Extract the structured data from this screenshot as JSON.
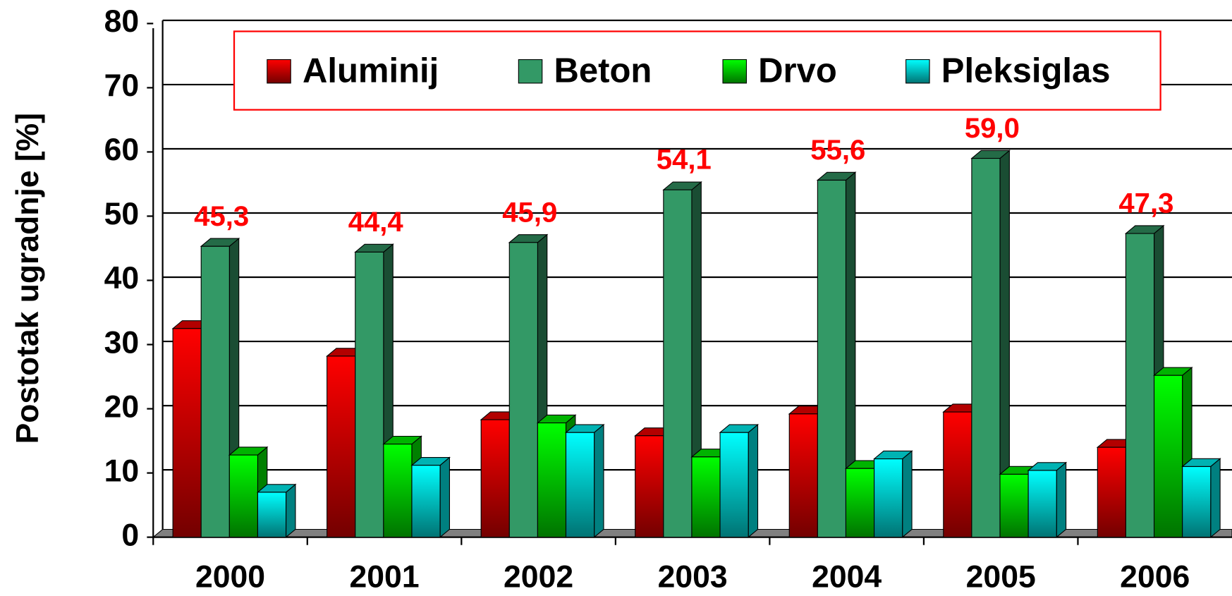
{
  "chart_data": {
    "type": "bar3d",
    "y_label": "Postotak ugradnje [%]",
    "categories": [
      "2000",
      "2001",
      "2002",
      "2003",
      "2004",
      "2005",
      "2006"
    ],
    "series": [
      {
        "name": "Aluminij",
        "color": "#ff0000",
        "values": [
          32.5,
          28.2,
          18.3,
          15.8,
          19.2,
          19.5,
          14.0
        ]
      },
      {
        "name": "Beton",
        "color": "#339966",
        "values": [
          45.3,
          44.4,
          45.9,
          54.1,
          55.6,
          59.0,
          47.3
        ],
        "value_labels": [
          "45,3",
          "44,4",
          "45,9",
          "54,1",
          "55,6",
          "59,0",
          "47,3"
        ]
      },
      {
        "name": "Drvo",
        "color": "#00ff00",
        "values": [
          12.8,
          14.5,
          17.8,
          12.5,
          10.7,
          9.8,
          25.2
        ]
      },
      {
        "name": "Pleksiglas",
        "color": "#00ffff",
        "values": [
          7.0,
          11.2,
          16.3,
          16.3,
          12.2,
          10.4,
          11.0
        ]
      }
    ],
    "ylim": [
      0,
      80
    ],
    "yticks": [
      0,
      10,
      20,
      30,
      40,
      50,
      60,
      70,
      80
    ],
    "grid": true,
    "legend": "top"
  }
}
